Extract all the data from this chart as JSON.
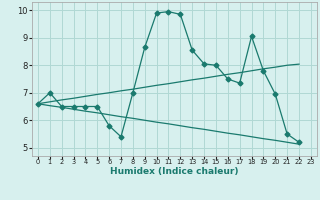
{
  "title": "",
  "xlabel": "Humidex (Indice chaleur)",
  "bg_color": "#d7f0ee",
  "grid_color": "#b0d8d4",
  "line_color": "#1a7a6e",
  "xlim": [
    -0.5,
    23.5
  ],
  "ylim": [
    4.7,
    10.3
  ],
  "xticks": [
    0,
    1,
    2,
    3,
    4,
    5,
    6,
    7,
    8,
    9,
    10,
    11,
    12,
    13,
    14,
    15,
    16,
    17,
    18,
    19,
    20,
    21,
    22,
    23
  ],
  "yticks": [
    5,
    6,
    7,
    8,
    9,
    10
  ],
  "line1_x": [
    0,
    1,
    2,
    3,
    4,
    5,
    6,
    7,
    8,
    9,
    10,
    11,
    12,
    13,
    14,
    15,
    16,
    17,
    18,
    19,
    20,
    21,
    22
  ],
  "line1_y": [
    6.6,
    7.0,
    6.5,
    6.5,
    6.5,
    6.5,
    5.8,
    5.4,
    7.0,
    8.65,
    9.9,
    9.95,
    9.85,
    8.55,
    8.05,
    8.0,
    7.5,
    7.35,
    9.05,
    7.8,
    6.95,
    5.5,
    5.2
  ],
  "line2_x": [
    0,
    1,
    2,
    3,
    4,
    5,
    6,
    7,
    8,
    9,
    10,
    11,
    12,
    13,
    14,
    15,
    16,
    17,
    18,
    19,
    20,
    21,
    22
  ],
  "line2_y": [
    6.6,
    6.67,
    6.74,
    6.8,
    6.87,
    6.94,
    7.0,
    7.07,
    7.13,
    7.2,
    7.27,
    7.33,
    7.4,
    7.47,
    7.53,
    7.6,
    7.67,
    7.73,
    7.8,
    7.87,
    7.93,
    8.0,
    8.04
  ],
  "line3_x": [
    0,
    1,
    2,
    3,
    4,
    5,
    6,
    7,
    8,
    9,
    10,
    11,
    12,
    13,
    14,
    15,
    16,
    17,
    18,
    19,
    20,
    21,
    22
  ],
  "line3_y": [
    6.6,
    6.53,
    6.47,
    6.4,
    6.33,
    6.27,
    6.2,
    6.13,
    6.07,
    6.0,
    5.93,
    5.87,
    5.8,
    5.73,
    5.67,
    5.6,
    5.53,
    5.47,
    5.4,
    5.33,
    5.27,
    5.2,
    5.13
  ]
}
